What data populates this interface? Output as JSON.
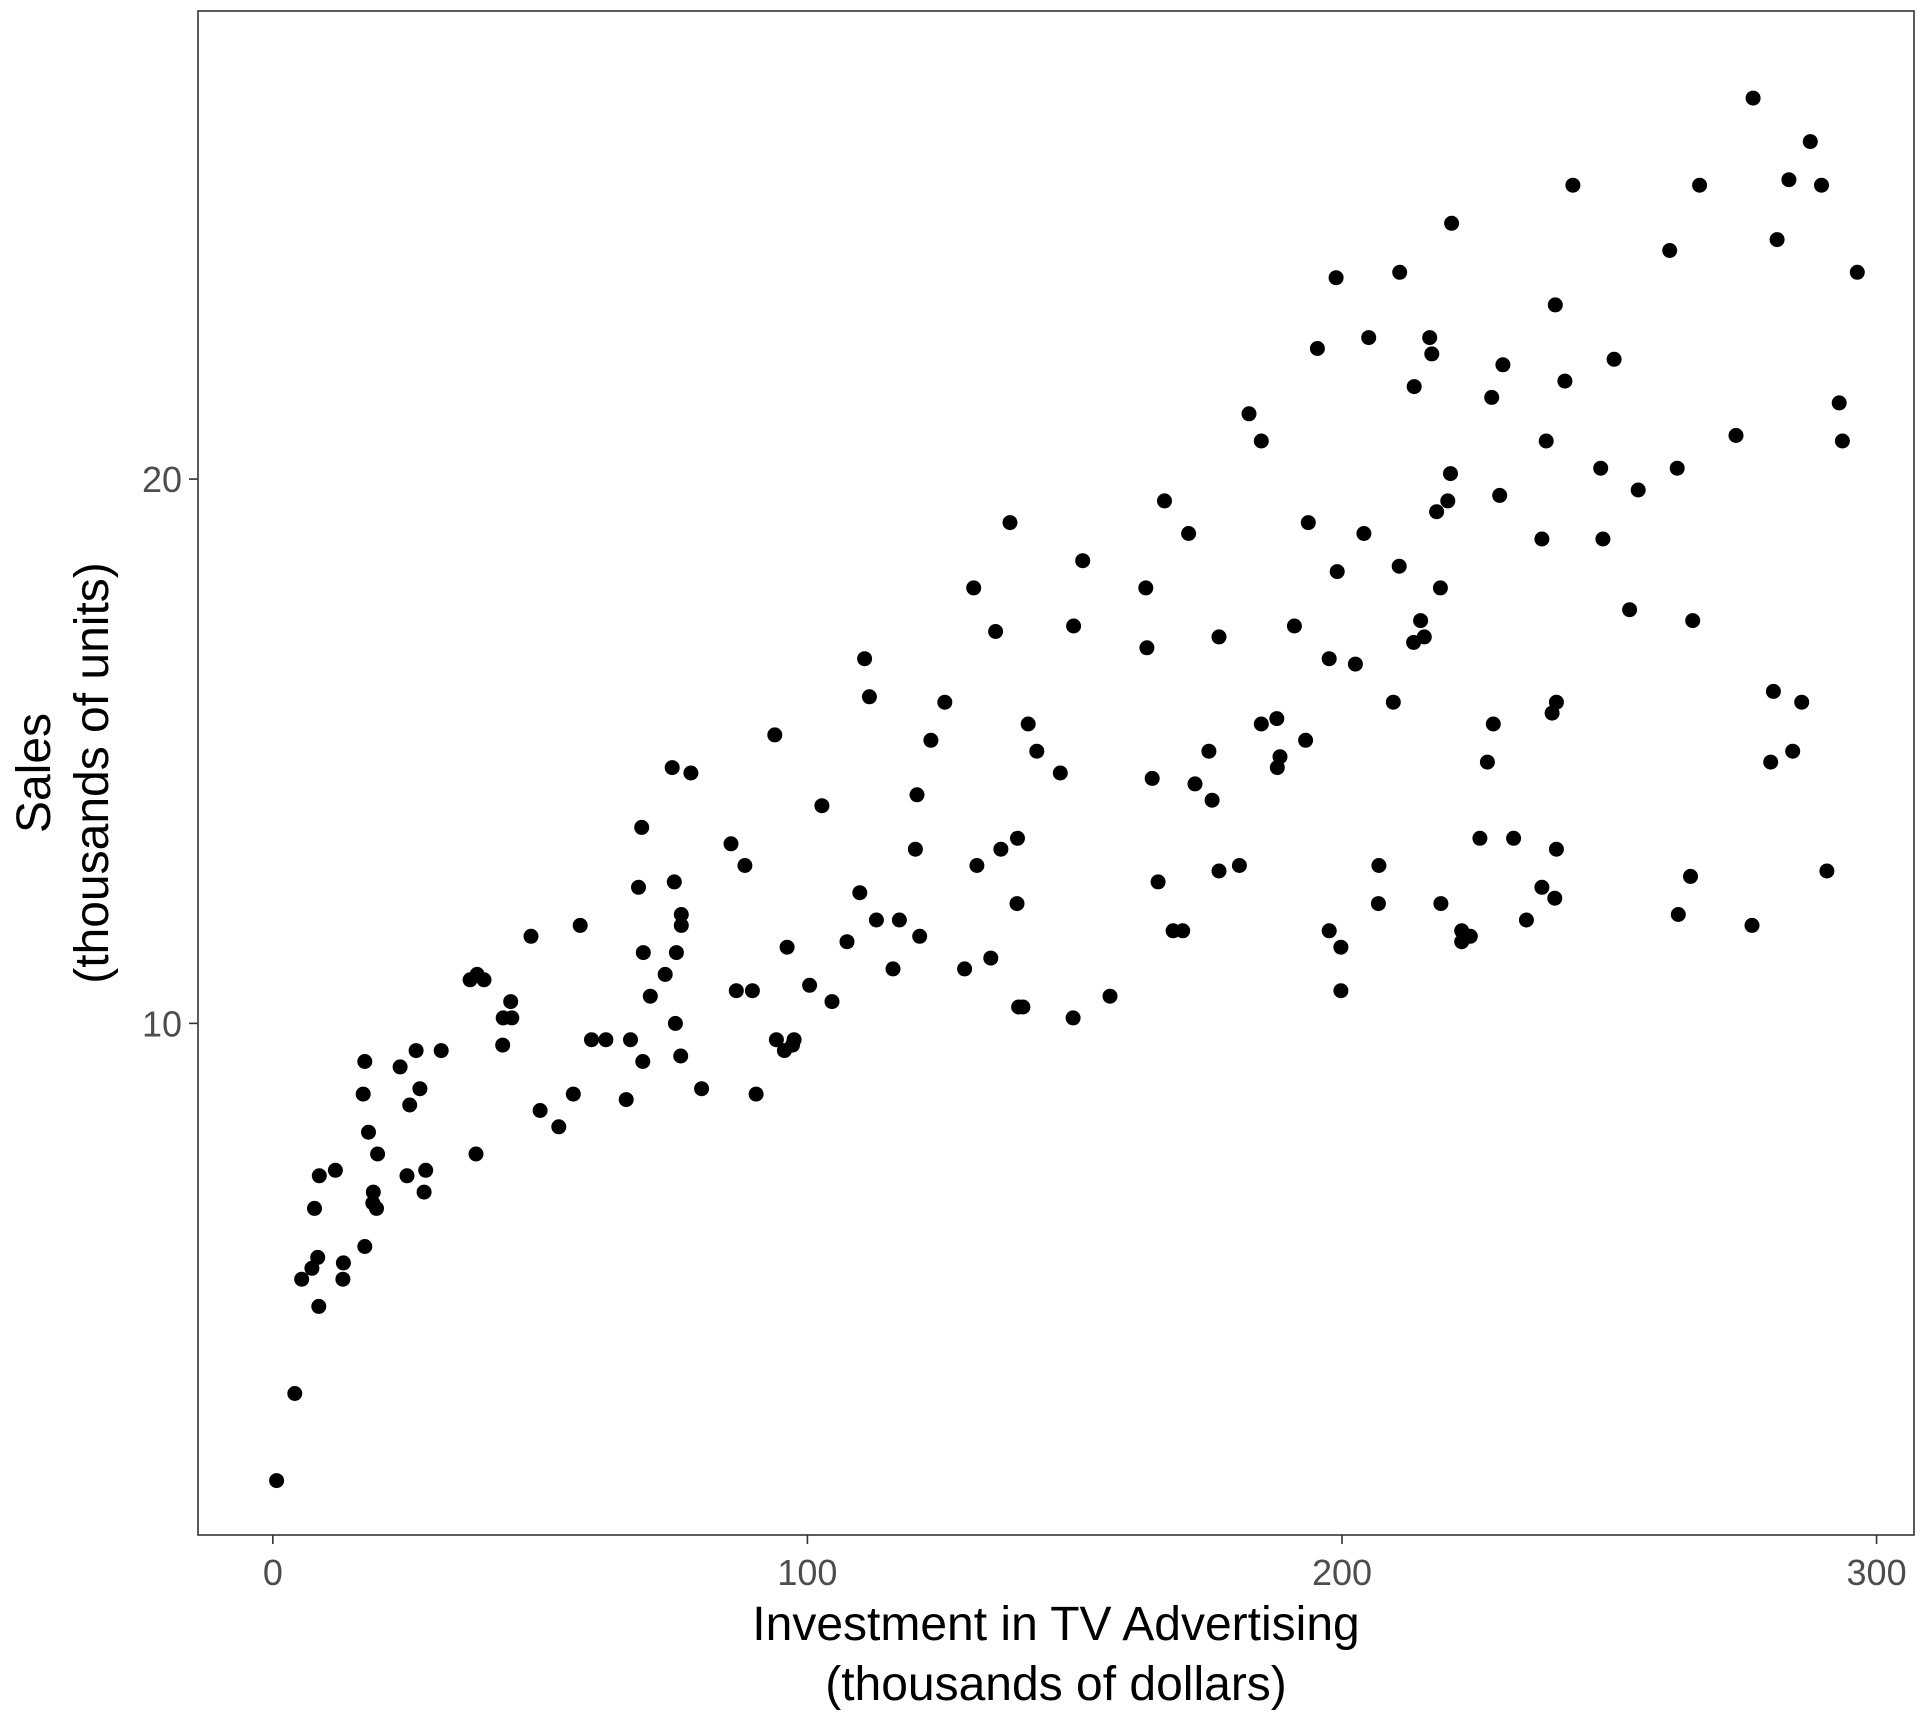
{
  "chart_data": {
    "type": "scatter",
    "title": "",
    "xlabel_lines": [
      "Investment in TV Advertising",
      "(thousands of dollars)"
    ],
    "ylabel_lines": [
      "Sales",
      "(thousands of units)"
    ],
    "xlim": [
      -14,
      307
    ],
    "ylim": [
      0.6,
      28.6
    ],
    "xticks": [
      0,
      100,
      200,
      300
    ],
    "yticks": [
      10,
      20
    ],
    "grid": false,
    "legend": "none",
    "point_color": "#000000",
    "points": [
      [
        0.7,
        1.6
      ],
      [
        4.1,
        3.2
      ],
      [
        5.4,
        5.3
      ],
      [
        7.3,
        5.5
      ],
      [
        7.8,
        6.6
      ],
      [
        8.4,
        5.7
      ],
      [
        8.6,
        4.8
      ],
      [
        8.7,
        7.2
      ],
      [
        11.7,
        7.3
      ],
      [
        13.1,
        5.3
      ],
      [
        13.2,
        5.6
      ],
      [
        16.9,
        8.7
      ],
      [
        17.2,
        9.3
      ],
      [
        17.2,
        5.9
      ],
      [
        17.9,
        8.0
      ],
      [
        18.7,
        6.7
      ],
      [
        18.8,
        6.9
      ],
      [
        19.4,
        6.6
      ],
      [
        19.6,
        7.6
      ],
      [
        23.8,
        9.2
      ],
      [
        25.1,
        7.2
      ],
      [
        25.6,
        8.5
      ],
      [
        26.8,
        9.5
      ],
      [
        27.5,
        8.8
      ],
      [
        28.6,
        7.3
      ],
      [
        28.3,
        6.9
      ],
      [
        31.5,
        9.5
      ],
      [
        36.9,
        10.8
      ],
      [
        38.2,
        10.9
      ],
      [
        38.0,
        7.6
      ],
      [
        39.5,
        10.8
      ],
      [
        43.0,
        9.6
      ],
      [
        43.1,
        10.1
      ],
      [
        44.5,
        10.4
      ],
      [
        44.7,
        10.1
      ],
      [
        48.3,
        11.6
      ],
      [
        50.0,
        8.4
      ],
      [
        53.5,
        8.1
      ],
      [
        56.2,
        8.7
      ],
      [
        57.5,
        11.8
      ],
      [
        59.6,
        9.7
      ],
      [
        62.3,
        9.7
      ],
      [
        66.1,
        8.6
      ],
      [
        66.9,
        9.7
      ],
      [
        68.4,
        12.5
      ],
      [
        69.0,
        13.6
      ],
      [
        69.2,
        9.3
      ],
      [
        69.3,
        11.3
      ],
      [
        70.6,
        10.5
      ],
      [
        73.4,
        10.9
      ],
      [
        74.7,
        14.7
      ],
      [
        75.1,
        12.6
      ],
      [
        75.3,
        10.0
      ],
      [
        75.5,
        11.3
      ],
      [
        76.3,
        9.4
      ],
      [
        76.4,
        11.8
      ],
      [
        76.4,
        12.0
      ],
      [
        78.2,
        14.6
      ],
      [
        80.2,
        8.8
      ],
      [
        85.7,
        13.3
      ],
      [
        86.7,
        10.6
      ],
      [
        88.3,
        12.9
      ],
      [
        89.7,
        10.6
      ],
      [
        90.4,
        8.7
      ],
      [
        93.9,
        15.3
      ],
      [
        94.2,
        9.7
      ],
      [
        95.7,
        9.5
      ],
      [
        96.2,
        11.4
      ],
      [
        97.2,
        9.6
      ],
      [
        97.5,
        9.7
      ],
      [
        100.4,
        10.7
      ],
      [
        102.7,
        14.0
      ],
      [
        104.6,
        10.4
      ],
      [
        107.4,
        11.5
      ],
      [
        109.8,
        12.4
      ],
      [
        110.7,
        16.7
      ],
      [
        111.6,
        16.0
      ],
      [
        112.9,
        11.9
      ],
      [
        116.0,
        11.0
      ],
      [
        117.2,
        11.9
      ],
      [
        120.2,
        13.2
      ],
      [
        120.5,
        14.2
      ],
      [
        121.0,
        11.6
      ],
      [
        123.1,
        15.2
      ],
      [
        125.7,
        15.9
      ],
      [
        129.4,
        11.0
      ],
      [
        131.1,
        18.0
      ],
      [
        131.7,
        12.9
      ],
      [
        134.3,
        11.2
      ],
      [
        135.2,
        17.2
      ],
      [
        136.2,
        13.2
      ],
      [
        137.9,
        19.2
      ],
      [
        139.2,
        12.2
      ],
      [
        139.3,
        13.4
      ],
      [
        139.5,
        10.3
      ],
      [
        140.3,
        10.3
      ],
      [
        141.3,
        15.5
      ],
      [
        142.9,
        15.0
      ],
      [
        147.3,
        14.6
      ],
      [
        149.7,
        10.1
      ],
      [
        149.8,
        17.3
      ],
      [
        151.5,
        18.5
      ],
      [
        156.6,
        10.5
      ],
      [
        163.3,
        18.0
      ],
      [
        163.5,
        16.9
      ],
      [
        164.5,
        14.5
      ],
      [
        165.6,
        12.6
      ],
      [
        166.8,
        19.6
      ],
      [
        168.4,
        11.7
      ],
      [
        170.2,
        11.7
      ],
      [
        171.3,
        19.0
      ],
      [
        172.5,
        14.4
      ],
      [
        175.1,
        15.0
      ],
      [
        175.7,
        14.1
      ],
      [
        177.0,
        12.8
      ],
      [
        177.0,
        17.1
      ],
      [
        180.8,
        12.9
      ],
      [
        182.6,
        21.2
      ],
      [
        184.9,
        15.5
      ],
      [
        184.9,
        20.7
      ],
      [
        187.8,
        15.6
      ],
      [
        187.9,
        14.7
      ],
      [
        188.4,
        14.9
      ],
      [
        191.1,
        17.3
      ],
      [
        193.2,
        15.2
      ],
      [
        193.7,
        19.2
      ],
      [
        195.4,
        22.4
      ],
      [
        197.6,
        11.7
      ],
      [
        197.6,
        16.7
      ],
      [
        198.9,
        23.7
      ],
      [
        199.1,
        18.3
      ],
      [
        199.8,
        11.4
      ],
      [
        199.8,
        10.6
      ],
      [
        202.5,
        16.6
      ],
      [
        204.1,
        19.0
      ],
      [
        205.0,
        22.6
      ],
      [
        206.8,
        12.2
      ],
      [
        206.9,
        12.9
      ],
      [
        209.6,
        15.9
      ],
      [
        210.7,
        18.4
      ],
      [
        210.8,
        23.8
      ],
      [
        213.4,
        17.0
      ],
      [
        213.5,
        21.7
      ],
      [
        214.7,
        17.4
      ],
      [
        215.4,
        17.1
      ],
      [
        216.4,
        22.6
      ],
      [
        216.8,
        22.3
      ],
      [
        217.7,
        19.4
      ],
      [
        218.4,
        18.0
      ],
      [
        218.5,
        12.2
      ],
      [
        219.8,
        19.6
      ],
      [
        220.3,
        20.1
      ],
      [
        220.5,
        24.7
      ],
      [
        222.4,
        11.5
      ],
      [
        222.4,
        11.7
      ],
      [
        224.0,
        11.6
      ],
      [
        225.8,
        13.4
      ],
      [
        227.2,
        14.8
      ],
      [
        228.0,
        21.5
      ],
      [
        228.3,
        15.5
      ],
      [
        229.5,
        19.7
      ],
      [
        230.1,
        22.1
      ],
      [
        232.1,
        13.4
      ],
      [
        234.5,
        11.9
      ],
      [
        237.4,
        12.5
      ],
      [
        237.4,
        18.9
      ],
      [
        238.2,
        20.7
      ],
      [
        239.3,
        15.7
      ],
      [
        239.8,
        12.3
      ],
      [
        239.9,
        23.2
      ],
      [
        240.1,
        13.2
      ],
      [
        240.1,
        15.9
      ],
      [
        241.7,
        21.8
      ],
      [
        243.2,
        25.4
      ],
      [
        248.4,
        20.2
      ],
      [
        248.8,
        18.9
      ],
      [
        250.9,
        22.2
      ],
      [
        253.8,
        17.6
      ],
      [
        255.4,
        19.8
      ],
      [
        261.3,
        24.2
      ],
      [
        262.7,
        20.2
      ],
      [
        262.9,
        12.0
      ],
      [
        265.2,
        12.7
      ],
      [
        265.6,
        17.4
      ],
      [
        266.9,
        25.4
      ],
      [
        273.7,
        20.8
      ],
      [
        276.7,
        11.8
      ],
      [
        276.9,
        27.0
      ],
      [
        280.2,
        14.8
      ],
      [
        280.7,
        16.1
      ],
      [
        281.4,
        24.4
      ],
      [
        283.6,
        25.5
      ],
      [
        284.3,
        15.0
      ],
      [
        286.0,
        15.9
      ],
      [
        287.6,
        26.2
      ],
      [
        289.7,
        25.4
      ],
      [
        290.7,
        12.8
      ],
      [
        293.6,
        20.7
      ],
      [
        293.0,
        21.4
      ],
      [
        296.4,
        23.8
      ]
    ]
  }
}
